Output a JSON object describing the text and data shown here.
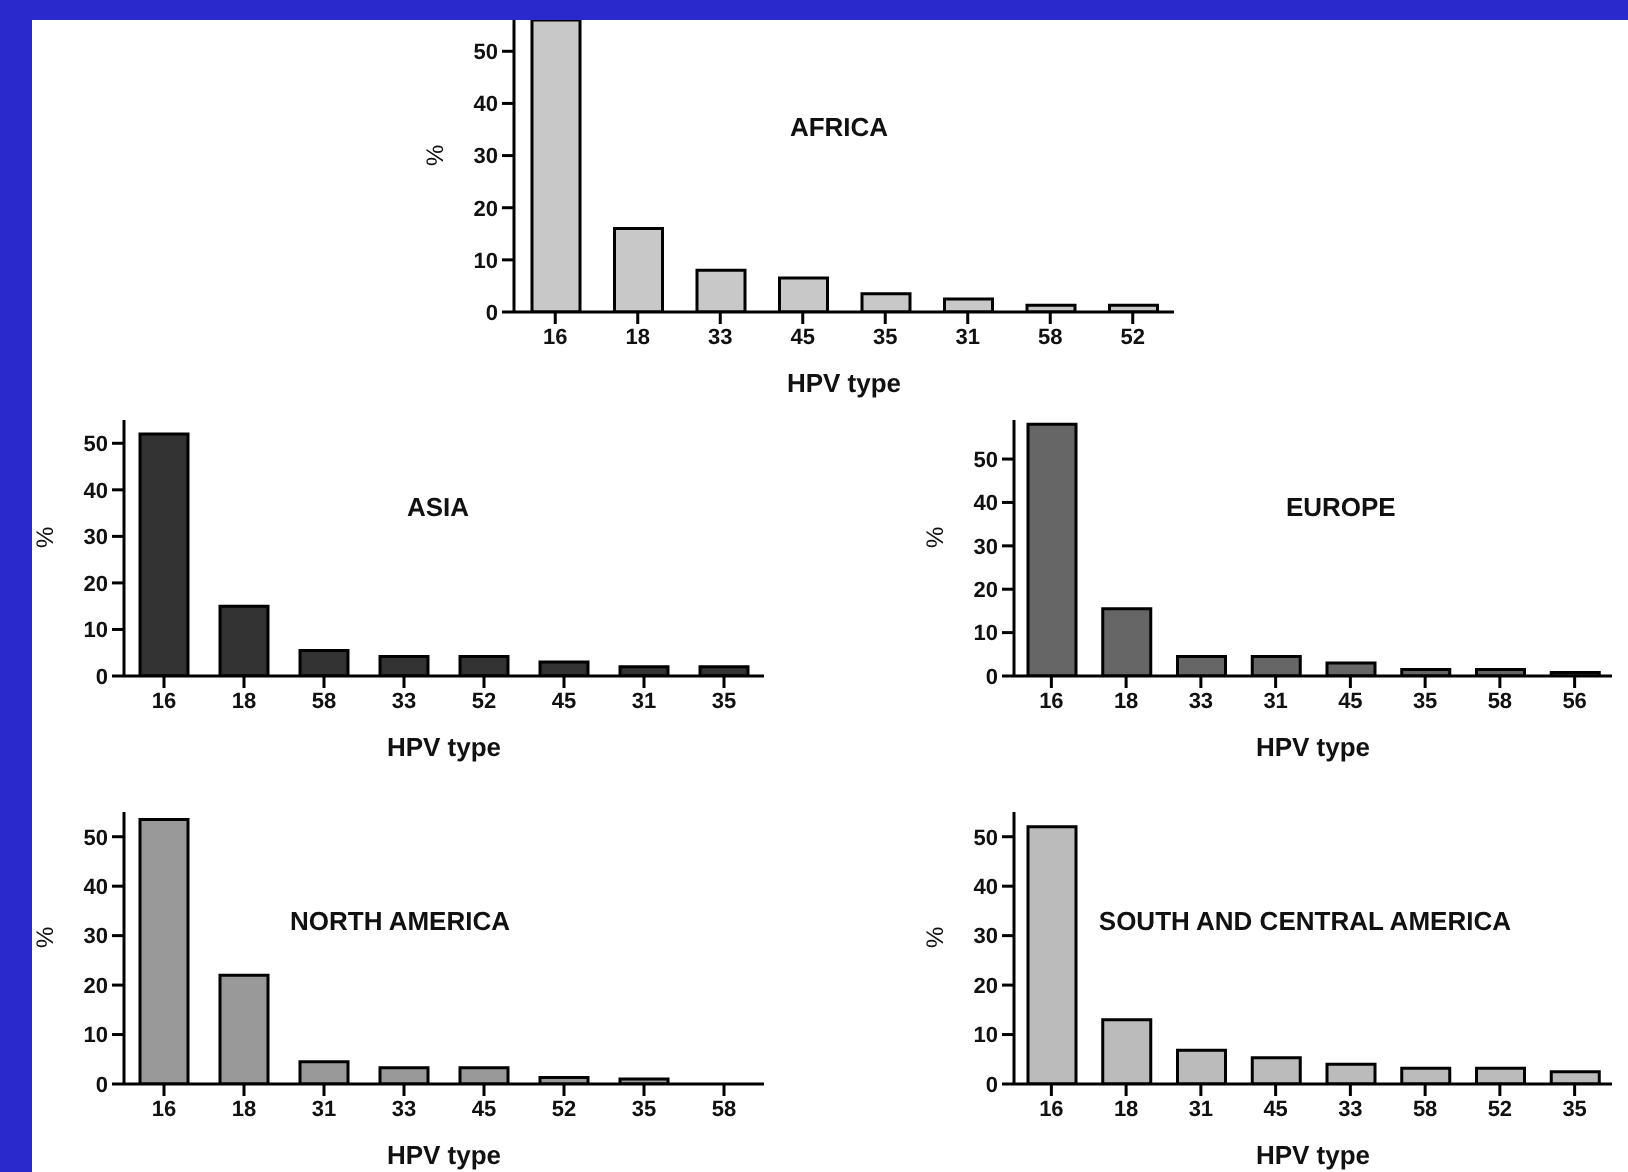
{
  "chart_data": [
    {
      "type": "bar",
      "title": "AFRICA",
      "xlabel": "HPV type",
      "ylabel": "%",
      "categories": [
        "16",
        "18",
        "33",
        "45",
        "35",
        "31",
        "58",
        "52"
      ],
      "values": [
        56,
        16,
        8,
        6.5,
        3.5,
        2.5,
        1.3,
        1.3
      ],
      "color": "#c8c8c8",
      "ylim": [
        0,
        56
      ],
      "yticks": [
        0,
        10,
        20,
        30,
        40,
        50
      ],
      "grid": false
    },
    {
      "type": "bar",
      "title": "ASIA",
      "xlabel": "HPV type",
      "ylabel": "%",
      "categories": [
        "16",
        "18",
        "58",
        "33",
        "52",
        "45",
        "31",
        "35"
      ],
      "values": [
        52,
        15,
        5.5,
        4.2,
        4.2,
        3,
        2,
        2
      ],
      "color": "#333333",
      "ylim": [
        0,
        55
      ],
      "yticks": [
        0,
        10,
        20,
        30,
        40,
        50
      ],
      "grid": false
    },
    {
      "type": "bar",
      "title": "EUROPE",
      "xlabel": "HPV type",
      "ylabel": "%",
      "categories": [
        "16",
        "18",
        "33",
        "31",
        "45",
        "35",
        "58",
        "56"
      ],
      "values": [
        58,
        15.5,
        4.5,
        4.5,
        3,
        1.5,
        1.5,
        0.8
      ],
      "color": "#666666",
      "ylim": [
        0,
        59
      ],
      "yticks": [
        0,
        10,
        20,
        30,
        40,
        50
      ],
      "grid": false
    },
    {
      "type": "bar",
      "title": "NORTH AMERICA",
      "xlabel": "HPV type",
      "ylabel": "%",
      "categories": [
        "16",
        "18",
        "31",
        "33",
        "45",
        "52",
        "35",
        "58"
      ],
      "values": [
        53.5,
        22,
        4.5,
        3.3,
        3.3,
        1.3,
        1,
        0
      ],
      "color": "#999999",
      "ylim": [
        0,
        55
      ],
      "yticks": [
        0,
        10,
        20,
        30,
        40,
        50
      ],
      "grid": false
    },
    {
      "type": "bar",
      "title": "SOUTH AND CENTRAL AMERICA",
      "xlabel": "HPV type",
      "ylabel": "%",
      "categories": [
        "16",
        "18",
        "31",
        "45",
        "33",
        "58",
        "52",
        "35"
      ],
      "values": [
        52,
        13,
        6.8,
        5.3,
        4,
        3.2,
        3.2,
        2.5
      ],
      "color": "#bbbbbb",
      "ylim": [
        0,
        55
      ],
      "yticks": [
        0,
        10,
        20,
        30,
        40,
        50
      ],
      "grid": false
    }
  ]
}
